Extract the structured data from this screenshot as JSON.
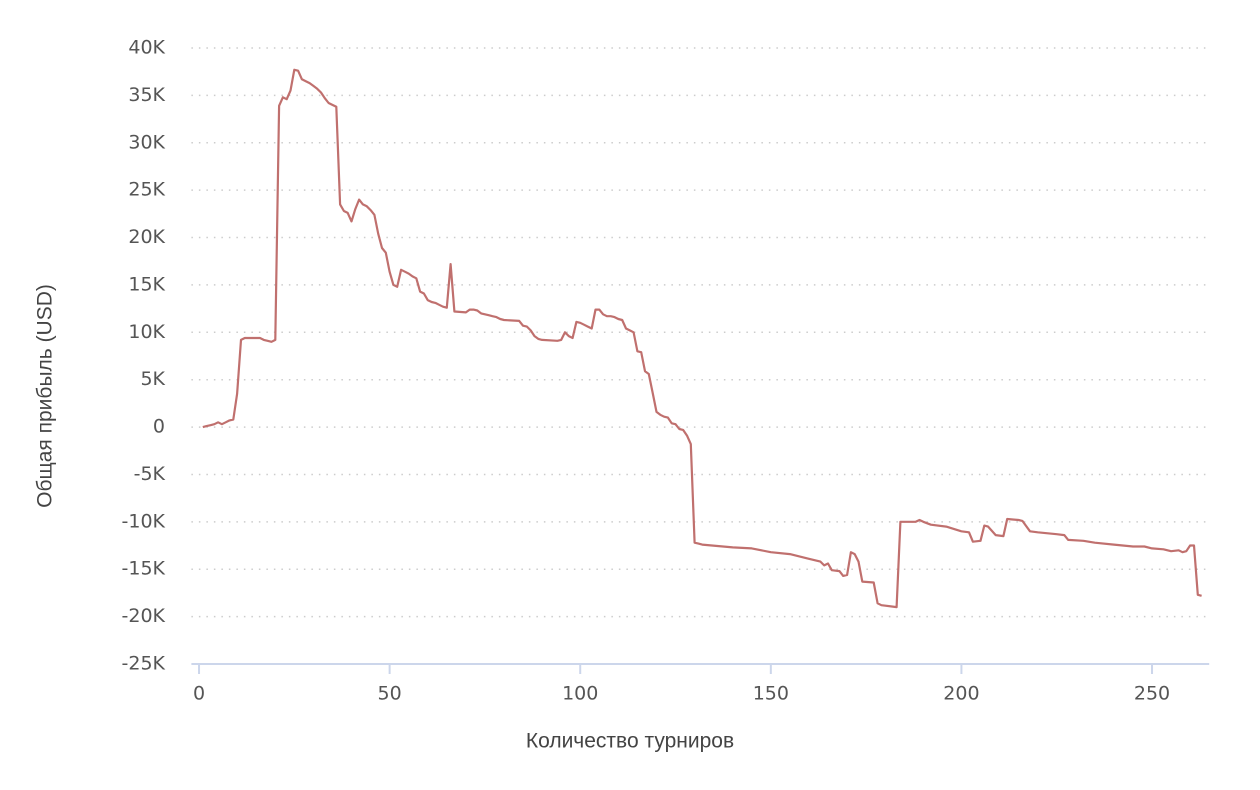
{
  "chart_data": {
    "type": "line",
    "x_label": "Количество турниров",
    "y_label": "Общая прибыль (USD)",
    "x": [
      1,
      2,
      3,
      4,
      5,
      6,
      7,
      8,
      9,
      10,
      11,
      12,
      15,
      16,
      17,
      18,
      19,
      20,
      21,
      22,
      23,
      24,
      25,
      26,
      27,
      28,
      29,
      30,
      31,
      32,
      33,
      34,
      35,
      36,
      37,
      38,
      39,
      40,
      41,
      42,
      43,
      44,
      45,
      46,
      47,
      48,
      49,
      50,
      51,
      52,
      53,
      54,
      55,
      56,
      57,
      58,
      59,
      60,
      61,
      62,
      63,
      64,
      65,
      66,
      67,
      70,
      71,
      72,
      73,
      74,
      75,
      76,
      77,
      78,
      79,
      80,
      84,
      85,
      86,
      87,
      88,
      89,
      90,
      94,
      95,
      96,
      97,
      98,
      99,
      100,
      101,
      102,
      103,
      104,
      105,
      106,
      107,
      108,
      109,
      110,
      111,
      112,
      113,
      114,
      115,
      116,
      117,
      118,
      119,
      120,
      121,
      122,
      123,
      124,
      125,
      126,
      127,
      128,
      129,
      130,
      131,
      132,
      140,
      145,
      150,
      155,
      160,
      163,
      164,
      165,
      166,
      168,
      169,
      170,
      171,
      172,
      173,
      174,
      177,
      178,
      179,
      183,
      184,
      188,
      189,
      190,
      192,
      196,
      200,
      202,
      203,
      205,
      206,
      207,
      209,
      211,
      212,
      215,
      216,
      218,
      220,
      225,
      227,
      228,
      232,
      235,
      240,
      245,
      248,
      250,
      253,
      255,
      257,
      258,
      259,
      260,
      261,
      262,
      263
    ],
    "series": [
      {
        "name": "Общая прибыль",
        "color": "#c0706e",
        "values": [
          0,
          100,
          200,
          300,
          500,
          300,
          500,
          700,
          800,
          3500,
          9200,
          9400,
          9400,
          9400,
          9200,
          9100,
          9000,
          9200,
          33900,
          34800,
          34600,
          35500,
          37700,
          37600,
          36700,
          36500,
          36300,
          36000,
          35700,
          35300,
          34700,
          34200,
          34000,
          33800,
          23500,
          22800,
          22600,
          21700,
          23000,
          24000,
          23500,
          23300,
          22900,
          22400,
          20400,
          18900,
          18400,
          16400,
          15000,
          14800,
          16600,
          16400,
          16200,
          15900,
          15700,
          14300,
          14100,
          13400,
          13200,
          13100,
          12900,
          12700,
          12600,
          17200,
          12200,
          12100,
          12400,
          12400,
          12300,
          12000,
          11900,
          11800,
          11700,
          11600,
          11400,
          11300,
          11200,
          10700,
          10600,
          10200,
          9600,
          9300,
          9200,
          9100,
          9200,
          10000,
          9600,
          9400,
          11100,
          11000,
          10800,
          10600,
          10400,
          12400,
          12400,
          11900,
          11700,
          11700,
          11600,
          11400,
          11300,
          10400,
          10200,
          10000,
          8000,
          7900,
          5900,
          5600,
          3600,
          1600,
          1300,
          1100,
          1000,
          400,
          300,
          -200,
          -300,
          -900,
          -1800,
          -12200,
          -12300,
          -12400,
          -12700,
          -12800,
          -13200,
          -13400,
          -13900,
          -14200,
          -14600,
          -14400,
          -15100,
          -15200,
          -15700,
          -15600,
          -13200,
          -13400,
          -14200,
          -16300,
          -16400,
          -18600,
          -18800,
          -19000,
          -10000,
          -10000,
          -9800,
          -10000,
          -10300,
          -10500,
          -11000,
          -11100,
          -12100,
          -12000,
          -10400,
          -10500,
          -11400,
          -11500,
          -9700,
          -9800,
          -9900,
          -11000,
          -11100,
          -11300,
          -11400,
          -11900,
          -12000,
          -12200,
          -12400,
          -12600,
          -12600,
          -12800,
          -12900,
          -13100,
          -13000,
          -13200,
          -13100,
          -12500,
          -12500,
          -17700,
          -17800
        ]
      }
    ],
    "xlim": [
      -2,
      265
    ],
    "xticks": [
      0,
      50,
      100,
      150,
      200,
      250
    ],
    "ylim": [
      -25000,
      40000
    ],
    "yticks": [
      {
        "value": -25000,
        "label": "-25K"
      },
      {
        "value": -20000,
        "label": "-20K"
      },
      {
        "value": -15000,
        "label": "-15K"
      },
      {
        "value": -10000,
        "label": "-10K"
      },
      {
        "value": -5000,
        "label": "-5K"
      },
      0,
      {
        "value": 5000,
        "label": "5K"
      },
      {
        "value": 10000,
        "label": "10K"
      },
      {
        "value": 15000,
        "label": "15K"
      },
      {
        "value": 20000,
        "label": "20K"
      },
      {
        "value": 25000,
        "label": "25K"
      },
      {
        "value": 30000,
        "label": "30K"
      },
      {
        "value": 35000,
        "label": "35K"
      },
      {
        "value": 40000,
        "label": "40K"
      }
    ],
    "grid": true
  }
}
